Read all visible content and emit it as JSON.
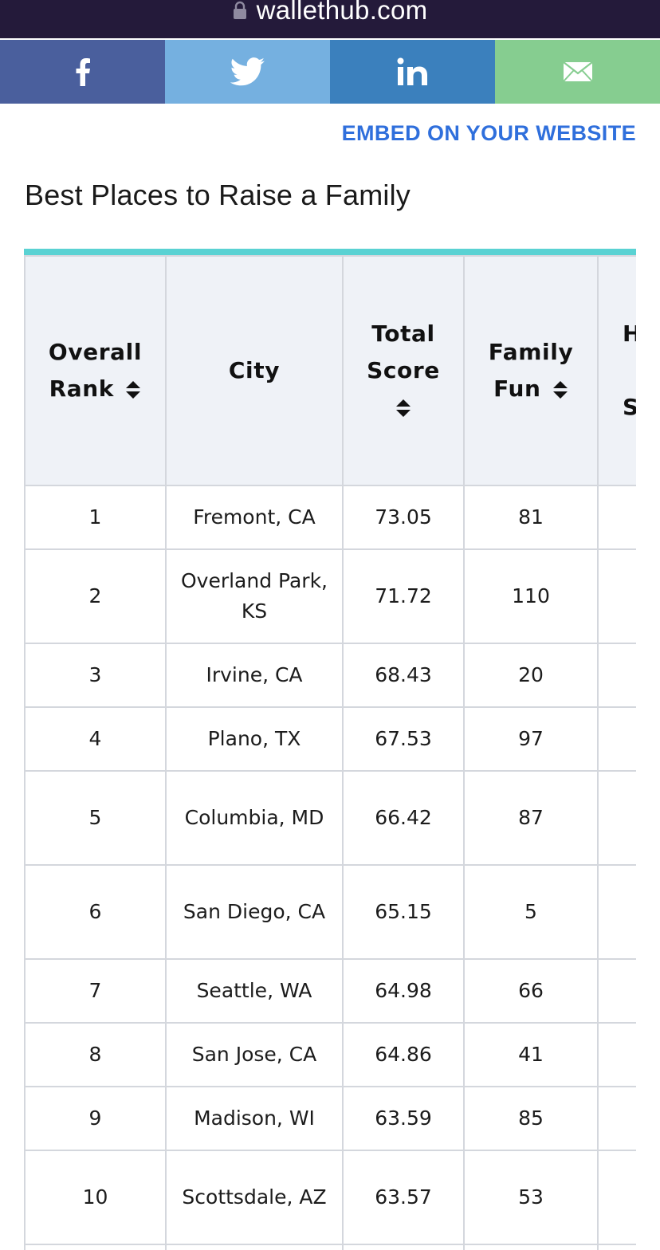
{
  "browser": {
    "url": "wallethub.com"
  },
  "share": {
    "facebook_icon": "facebook-icon",
    "twitter_icon": "twitter-icon",
    "linkedin_icon": "linkedin-icon",
    "email_icon": "email-icon",
    "colors": {
      "facebook": "#4a5f9d",
      "twitter": "#75b0e0",
      "linkedin": "#3b80bd",
      "email": "#86cd90"
    }
  },
  "embed_label": "EMBED ON YOUR WEBSITE",
  "title": "Best Places to Raise a Family",
  "table": {
    "headers": {
      "rank_line1": "Overall",
      "rank_line2": "Rank",
      "city": "City",
      "score_line1": "Total",
      "score_line2": "Score",
      "fun_line1": "Family",
      "fun_line2": "Fun",
      "partial_line1": "H",
      "partial_line2": "S"
    },
    "rows": [
      {
        "rank": "1",
        "city": "Fremont, CA",
        "score": "73.05",
        "fun": "81"
      },
      {
        "rank": "2",
        "city": "Overland Park, KS",
        "score": "71.72",
        "fun": "110"
      },
      {
        "rank": "3",
        "city": "Irvine, CA",
        "score": "68.43",
        "fun": "20"
      },
      {
        "rank": "4",
        "city": "Plano, TX",
        "score": "67.53",
        "fun": "97"
      },
      {
        "rank": "5",
        "city": "Columbia, MD",
        "score": "66.42",
        "fun": "87"
      },
      {
        "rank": "6",
        "city": "San Diego, CA",
        "score": "65.15",
        "fun": "5"
      },
      {
        "rank": "7",
        "city": "Seattle, WA",
        "score": "64.98",
        "fun": "66"
      },
      {
        "rank": "8",
        "city": "San Jose, CA",
        "score": "64.86",
        "fun": "41"
      },
      {
        "rank": "9",
        "city": "Madison, WI",
        "score": "63.59",
        "fun": "85"
      },
      {
        "rank": "10",
        "city": "Scottsdale, AZ",
        "score": "63.57",
        "fun": "53"
      }
    ],
    "accent_color": "#5ad2d3"
  }
}
